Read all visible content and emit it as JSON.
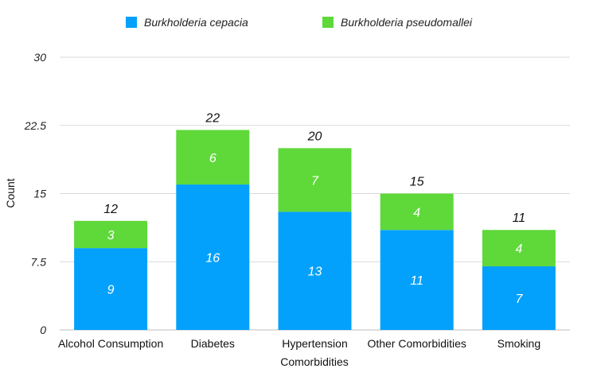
{
  "chart_data": {
    "type": "bar",
    "stacked": true,
    "title": "",
    "xlabel": "Comorbidities",
    "ylabel": "Count",
    "ylim": [
      0,
      30
    ],
    "yticks": [
      0,
      7.5,
      15,
      22.5,
      30
    ],
    "ytick_labels": [
      "0",
      "7.5",
      "15",
      "22.5",
      "30"
    ],
    "grid": true,
    "legend_position": "top",
    "categories": [
      "Alcohol Consumption",
      "Diabetes",
      "Hypertension",
      "Other Comorbidities",
      "Smoking"
    ],
    "series": [
      {
        "name": "Burkholderia cepacia",
        "color": "#03a1fc",
        "values": [
          9,
          16,
          13,
          11,
          7
        ]
      },
      {
        "name": "Burkholderia pseudomallei",
        "color": "#5fd83a",
        "values": [
          3,
          6,
          7,
          4,
          4
        ]
      }
    ],
    "totals": [
      12,
      22,
      20,
      15,
      11
    ]
  }
}
